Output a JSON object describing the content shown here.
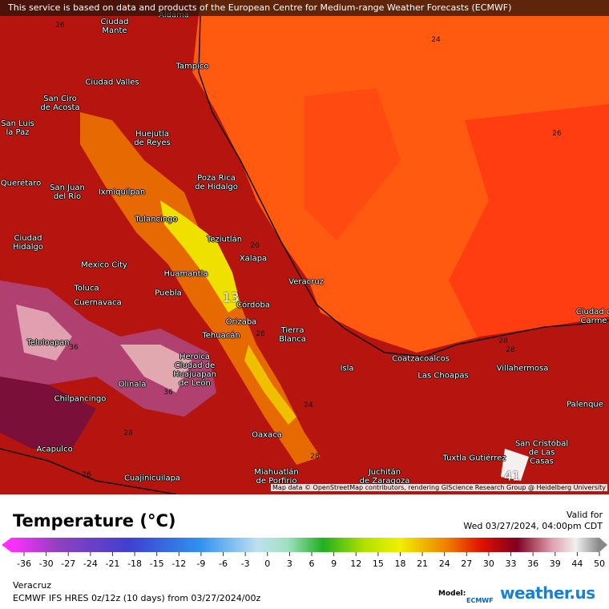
{
  "banner": "This service is based on data and products of the European Centre for Medium-range Weather Forecasts (ECMWF)",
  "attribution": "Map data © OpenStreetMap contributors, rendering GIScience Research Group @ Heidelberg University",
  "cities": [
    "Aldama",
    "Ciudad\nMante",
    "Tampico",
    "Ciudad Valles",
    "San Ciro\nde Acosta",
    "Huejutla\nde Reyes",
    "San Luis\nla Paz",
    "Querétaro",
    "Poza Rica\nde Hidalgo",
    "San Juan\ndel Río",
    "Ixmiquilpan",
    "Tulancingo",
    "Ciudad\nHidalgo",
    "Teziutlán",
    "Xalapa",
    "Mexico City",
    "Huamantla",
    "Veracruz",
    "Toluca",
    "Puebla",
    "Cuernavaca",
    "Córdoba",
    "Orizaba",
    "Tierra\nBlanca",
    "Tehuacán",
    "Teloloapan",
    "Heroica\nCiudad de\nHuajuapan\nde León",
    "Coatzacoalcos",
    "Las Choapas",
    "Villahermosa",
    "Isla",
    "Ciudad d\nCarme",
    "Olinalá",
    "Chilpancingo",
    "Palenque",
    "Oaxaca",
    "San Cristóbal\nde Las\nCasas",
    "Acapulco",
    "Tuxtla Gutiérrez",
    "Juchitán\nde Zaragoza",
    "Miahuatlán\nde Porfirio",
    "Cuajinicuilapa"
  ],
  "contour_labels": [
    26,
    24,
    26,
    20,
    13,
    26,
    28,
    28,
    36,
    36,
    24,
    28,
    26,
    28,
    41
  ],
  "legend": {
    "title": "Temperature (°C)",
    "valid_label": "Valid for",
    "valid_time": "Wed 03/27/2024, 04:00pm CDT",
    "ticks": [
      -36,
      -30,
      -27,
      -24,
      -21,
      -18,
      -15,
      -12,
      -9,
      -6,
      -3,
      0,
      3,
      6,
      9,
      12,
      15,
      18,
      21,
      24,
      27,
      30,
      33,
      36,
      39,
      44,
      50
    ]
  },
  "footer": {
    "location": "Veracruz",
    "model_run": "ECMWF IFS HRES 0z/12z (10 days) from 03/27/2024/00z",
    "model_label": "Model:",
    "model_logo": "ECMWF",
    "brand": "weather.us"
  }
}
